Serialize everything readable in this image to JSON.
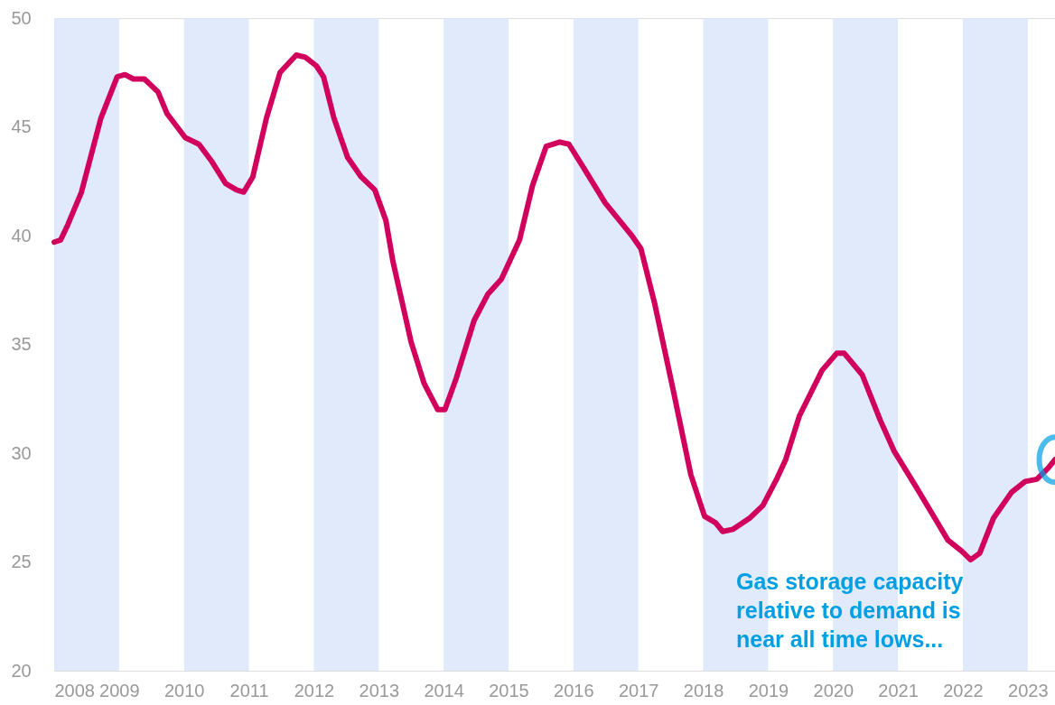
{
  "chart_data": {
    "type": "line",
    "xlim": [
      2008,
      2023.42
    ],
    "ylim": [
      20,
      50
    ],
    "xticks": [
      2008,
      2009,
      2010,
      2011,
      2012,
      2013,
      2014,
      2015,
      2016,
      2017,
      2018,
      2019,
      2020,
      2021,
      2022,
      2023
    ],
    "yticks": [
      20,
      25,
      30,
      35,
      40,
      45,
      50
    ],
    "grid": false,
    "marker": "none",
    "line_style": "solid",
    "series": [
      {
        "color": "#d1005d",
        "x": [
          2008.0,
          2008.1,
          2008.21,
          2008.42,
          2008.72,
          2008.97,
          2009.09,
          2009.22,
          2009.39,
          2009.6,
          2009.74,
          2010.02,
          2010.23,
          2010.43,
          2010.64,
          2010.81,
          2010.92,
          2011.06,
          2011.27,
          2011.48,
          2011.73,
          2011.87,
          2012.04,
          2012.15,
          2012.31,
          2012.52,
          2012.73,
          2012.94,
          2013.11,
          2013.22,
          2013.5,
          2013.7,
          2013.91,
          2014.02,
          2014.19,
          2014.47,
          2014.68,
          2014.89,
          2015.17,
          2015.37,
          2015.58,
          2015.79,
          2015.93,
          2016.14,
          2016.49,
          2016.9,
          2017.04,
          2017.25,
          2017.53,
          2017.81,
          2018.02,
          2018.19,
          2018.3,
          2018.46,
          2018.71,
          2018.92,
          2019.13,
          2019.27,
          2019.48,
          2019.83,
          2020.06,
          2020.17,
          2020.45,
          2020.73,
          2020.94,
          2021.29,
          2021.57,
          2021.77,
          2021.98,
          2022.12,
          2022.26,
          2022.47,
          2022.75,
          2022.96,
          2023.14,
          2023.31,
          2023.42
        ],
        "values": [
          39.7,
          39.8,
          40.5,
          42.0,
          45.4,
          47.3,
          47.4,
          47.2,
          47.2,
          46.6,
          45.6,
          44.5,
          44.2,
          43.4,
          42.4,
          42.1,
          42.0,
          42.7,
          45.4,
          47.5,
          48.3,
          48.2,
          47.8,
          47.3,
          45.4,
          43.6,
          42.7,
          42.1,
          40.7,
          38.8,
          35.1,
          33.2,
          32.0,
          32.0,
          33.4,
          36.1,
          37.3,
          38.0,
          39.8,
          42.3,
          44.1,
          44.3,
          44.2,
          43.2,
          41.5,
          40.0,
          39.4,
          36.9,
          33.0,
          29.0,
          27.1,
          26.8,
          26.4,
          26.5,
          27.0,
          27.6,
          28.8,
          29.7,
          31.7,
          33.8,
          34.6,
          34.6,
          33.6,
          31.5,
          30.1,
          28.4,
          27.0,
          26.0,
          25.5,
          25.1,
          25.4,
          27.0,
          28.2,
          28.7,
          28.8,
          29.3,
          29.7
        ]
      }
    ],
    "bands": [
      {
        "axis": "x",
        "from": 2008,
        "to": 2009,
        "color": "#dde8fa"
      },
      {
        "axis": "x",
        "from": 2010,
        "to": 2011,
        "color": "#dde8fa"
      },
      {
        "axis": "x",
        "from": 2012,
        "to": 2013,
        "color": "#dde8fa"
      },
      {
        "axis": "x",
        "from": 2014,
        "to": 2015,
        "color": "#dde8fa"
      },
      {
        "axis": "x",
        "from": 2016,
        "to": 2017,
        "color": "#dde8fa"
      },
      {
        "axis": "x",
        "from": 2018,
        "to": 2019,
        "color": "#dde8fa"
      },
      {
        "axis": "x",
        "from": 2020,
        "to": 2021,
        "color": "#dde8fa"
      },
      {
        "axis": "x",
        "from": 2022,
        "to": 2023,
        "color": "#dde8fa"
      }
    ],
    "annotations": [
      "Gas storage capacity relative to demand is near all time lows..."
    ]
  }
}
